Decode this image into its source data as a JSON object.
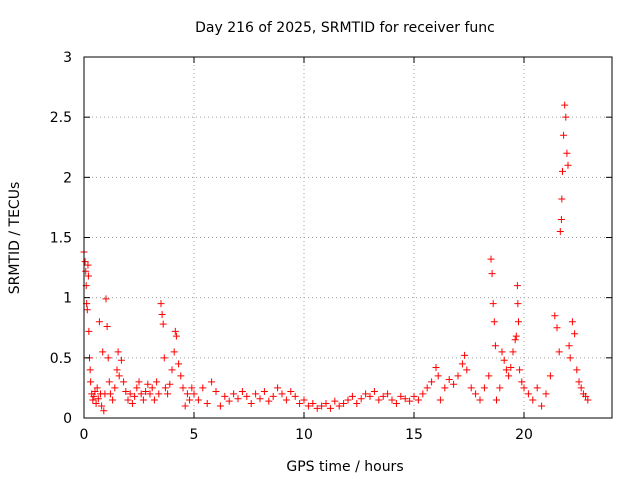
{
  "chart_data": {
    "type": "scatter",
    "title": "Day 216 of 2025, SRMTID for receiver func",
    "xlabel": "GPS time / hours",
    "ylabel": "SRMTID / TECUs",
    "xlim": [
      0,
      24
    ],
    "ylim": [
      0,
      3
    ],
    "x_ticks": [
      0,
      5,
      10,
      15,
      20
    ],
    "x_tick_labels": [
      "0",
      "5",
      "10",
      "15",
      "20"
    ],
    "y_ticks": [
      0,
      0.5,
      1,
      1.5,
      2,
      2.5,
      3
    ],
    "y_tick_labels": [
      "0",
      "0.5",
      "1",
      "1.5",
      "2",
      "2.5",
      "3"
    ],
    "grid": true,
    "marker": "+",
    "series": [
      {
        "name": "SRMTID",
        "color": "#ff0000",
        "points": [
          [
            0.0,
            1.38
          ],
          [
            0.05,
            1.3
          ],
          [
            0.08,
            1.22
          ],
          [
            0.1,
            1.1
          ],
          [
            0.12,
            0.95
          ],
          [
            0.15,
            0.9
          ],
          [
            0.18,
            1.27
          ],
          [
            0.2,
            1.18
          ],
          [
            0.22,
            0.72
          ],
          [
            0.25,
            0.5
          ],
          [
            0.28,
            0.4
          ],
          [
            0.3,
            0.3
          ],
          [
            0.35,
            0.2
          ],
          [
            0.4,
            0.15
          ],
          [
            0.45,
            0.18
          ],
          [
            0.5,
            0.22
          ],
          [
            0.55,
            0.12
          ],
          [
            0.6,
            0.25
          ],
          [
            0.65,
            0.16
          ],
          [
            0.7,
            0.8
          ],
          [
            0.75,
            0.2
          ],
          [
            0.8,
            0.1
          ],
          [
            0.85,
            0.55
          ],
          [
            0.9,
            0.06
          ],
          [
            0.95,
            0.2
          ],
          [
            1.0,
            0.99
          ],
          [
            1.05,
            0.76
          ],
          [
            1.1,
            0.5
          ],
          [
            1.15,
            0.3
          ],
          [
            1.2,
            0.2
          ],
          [
            1.3,
            0.15
          ],
          [
            1.4,
            0.25
          ],
          [
            1.5,
            0.4
          ],
          [
            1.55,
            0.55
          ],
          [
            1.6,
            0.35
          ],
          [
            1.7,
            0.48
          ],
          [
            1.8,
            0.3
          ],
          [
            1.9,
            0.22
          ],
          [
            2.0,
            0.15
          ],
          [
            2.1,
            0.2
          ],
          [
            2.2,
            0.12
          ],
          [
            2.3,
            0.18
          ],
          [
            2.4,
            0.25
          ],
          [
            2.5,
            0.3
          ],
          [
            2.6,
            0.2
          ],
          [
            2.7,
            0.15
          ],
          [
            2.8,
            0.22
          ],
          [
            2.9,
            0.28
          ],
          [
            3.0,
            0.2
          ],
          [
            3.1,
            0.25
          ],
          [
            3.2,
            0.15
          ],
          [
            3.3,
            0.3
          ],
          [
            3.4,
            0.2
          ],
          [
            3.5,
            0.95
          ],
          [
            3.55,
            0.86
          ],
          [
            3.6,
            0.78
          ],
          [
            3.65,
            0.5
          ],
          [
            3.7,
            0.25
          ],
          [
            3.8,
            0.2
          ],
          [
            3.9,
            0.28
          ],
          [
            4.0,
            0.4
          ],
          [
            4.1,
            0.55
          ],
          [
            4.15,
            0.72
          ],
          [
            4.2,
            0.68
          ],
          [
            4.3,
            0.45
          ],
          [
            4.4,
            0.35
          ],
          [
            4.5,
            0.25
          ],
          [
            4.6,
            0.1
          ],
          [
            4.7,
            0.2
          ],
          [
            4.8,
            0.15
          ],
          [
            4.9,
            0.25
          ],
          [
            5.0,
            0.2
          ],
          [
            5.2,
            0.15
          ],
          [
            5.4,
            0.25
          ],
          [
            5.6,
            0.12
          ],
          [
            5.8,
            0.3
          ],
          [
            6.0,
            0.22
          ],
          [
            6.2,
            0.1
          ],
          [
            6.4,
            0.18
          ],
          [
            6.6,
            0.14
          ],
          [
            6.8,
            0.2
          ],
          [
            7.0,
            0.16
          ],
          [
            7.2,
            0.22
          ],
          [
            7.4,
            0.18
          ],
          [
            7.6,
            0.12
          ],
          [
            7.8,
            0.2
          ],
          [
            8.0,
            0.16
          ],
          [
            8.2,
            0.22
          ],
          [
            8.4,
            0.14
          ],
          [
            8.6,
            0.18
          ],
          [
            8.8,
            0.25
          ],
          [
            9.0,
            0.2
          ],
          [
            9.2,
            0.15
          ],
          [
            9.4,
            0.22
          ],
          [
            9.6,
            0.18
          ],
          [
            9.8,
            0.12
          ],
          [
            10.0,
            0.15
          ],
          [
            10.2,
            0.1
          ],
          [
            10.4,
            0.12
          ],
          [
            10.6,
            0.08
          ],
          [
            10.8,
            0.1
          ],
          [
            11.0,
            0.12
          ],
          [
            11.2,
            0.08
          ],
          [
            11.4,
            0.14
          ],
          [
            11.6,
            0.1
          ],
          [
            11.8,
            0.12
          ],
          [
            12.0,
            0.15
          ],
          [
            12.2,
            0.18
          ],
          [
            12.4,
            0.12
          ],
          [
            12.6,
            0.16
          ],
          [
            12.8,
            0.2
          ],
          [
            13.0,
            0.18
          ],
          [
            13.2,
            0.22
          ],
          [
            13.4,
            0.15
          ],
          [
            13.6,
            0.18
          ],
          [
            13.8,
            0.2
          ],
          [
            14.0,
            0.15
          ],
          [
            14.2,
            0.12
          ],
          [
            14.4,
            0.18
          ],
          [
            14.6,
            0.16
          ],
          [
            14.8,
            0.14
          ],
          [
            15.0,
            0.18
          ],
          [
            15.2,
            0.15
          ],
          [
            15.4,
            0.2
          ],
          [
            15.6,
            0.25
          ],
          [
            15.8,
            0.3
          ],
          [
            16.0,
            0.42
          ],
          [
            16.1,
            0.35
          ],
          [
            16.2,
            0.15
          ],
          [
            16.4,
            0.25
          ],
          [
            16.6,
            0.32
          ],
          [
            16.8,
            0.28
          ],
          [
            17.0,
            0.35
          ],
          [
            17.2,
            0.45
          ],
          [
            17.3,
            0.52
          ],
          [
            17.4,
            0.4
          ],
          [
            17.6,
            0.25
          ],
          [
            17.8,
            0.2
          ],
          [
            18.0,
            0.15
          ],
          [
            18.2,
            0.25
          ],
          [
            18.4,
            0.35
          ],
          [
            18.5,
            1.32
          ],
          [
            18.55,
            1.2
          ],
          [
            18.6,
            0.95
          ],
          [
            18.65,
            0.8
          ],
          [
            18.7,
            0.6
          ],
          [
            18.75,
            0.15
          ],
          [
            18.9,
            0.25
          ],
          [
            19.0,
            0.55
          ],
          [
            19.1,
            0.48
          ],
          [
            19.2,
            0.4
          ],
          [
            19.3,
            0.35
          ],
          [
            19.4,
            0.42
          ],
          [
            19.5,
            0.55
          ],
          [
            19.6,
            0.65
          ],
          [
            19.65,
            0.68
          ],
          [
            19.7,
            1.1
          ],
          [
            19.72,
            0.95
          ],
          [
            19.75,
            0.8
          ],
          [
            19.8,
            0.4
          ],
          [
            19.9,
            0.3
          ],
          [
            20.0,
            0.25
          ],
          [
            20.2,
            0.2
          ],
          [
            20.4,
            0.15
          ],
          [
            20.6,
            0.25
          ],
          [
            20.8,
            0.1
          ],
          [
            21.0,
            0.2
          ],
          [
            21.2,
            0.35
          ],
          [
            21.4,
            0.85
          ],
          [
            21.5,
            0.75
          ],
          [
            21.6,
            0.55
          ],
          [
            21.65,
            1.55
          ],
          [
            21.7,
            1.65
          ],
          [
            21.72,
            1.82
          ],
          [
            21.75,
            2.05
          ],
          [
            21.8,
            2.35
          ],
          [
            21.85,
            2.6
          ],
          [
            21.9,
            2.5
          ],
          [
            21.95,
            2.2
          ],
          [
            22.0,
            2.1
          ],
          [
            22.05,
            0.6
          ],
          [
            22.1,
            0.5
          ],
          [
            22.2,
            0.8
          ],
          [
            22.3,
            0.7
          ],
          [
            22.4,
            0.4
          ],
          [
            22.5,
            0.3
          ],
          [
            22.6,
            0.25
          ],
          [
            22.7,
            0.2
          ],
          [
            22.8,
            0.18
          ],
          [
            22.9,
            0.15
          ]
        ]
      }
    ]
  }
}
